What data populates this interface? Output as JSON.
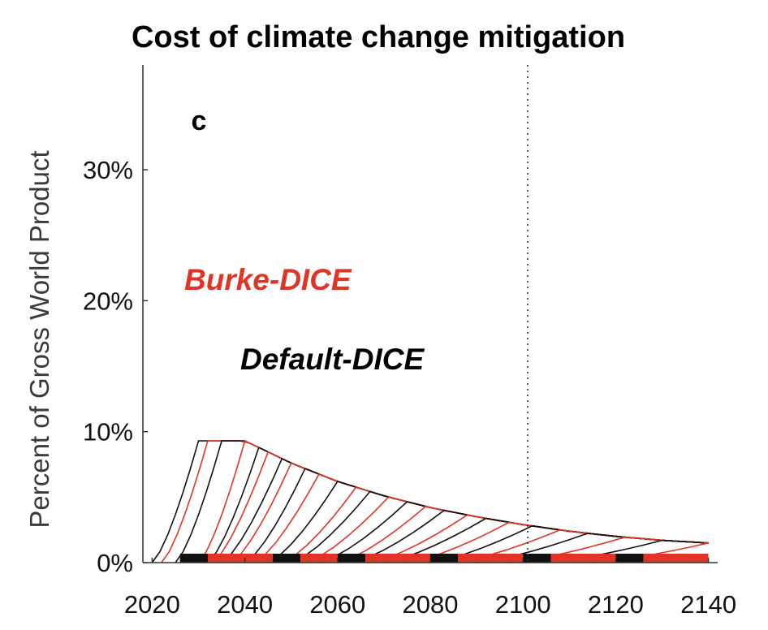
{
  "chart_data": {
    "type": "line",
    "title": "Cost of climate change mitigation",
    "panel_label": "c",
    "xlabel": "",
    "ylabel": "Percent of Gross World Product",
    "xlim": [
      2018,
      2142
    ],
    "ylim": [
      0,
      38
    ],
    "x_ticks": [
      2020,
      2040,
      2060,
      2080,
      2100,
      2120,
      2140
    ],
    "x_tick_labels": [
      "2020",
      "2040",
      "2060",
      "2080",
      "2100",
      "2120",
      "2140"
    ],
    "y_ticks": [
      0,
      10,
      20,
      30
    ],
    "y_tick_labels": [
      "0%",
      "10%",
      "20%",
      "30%"
    ],
    "reference_line": {
      "x": 2101,
      "style": "dotted"
    },
    "colors": {
      "burke": "#e03526",
      "default": "#111111",
      "reference": "#333333"
    },
    "legend": [
      {
        "label": "Burke-DICE",
        "color": "#e03526"
      },
      {
        "label": "Default-DICE",
        "color": "#000000"
      }
    ],
    "envelope": {
      "x": [
        2040,
        2050,
        2060,
        2070,
        2080,
        2090,
        2100,
        2110,
        2120,
        2130,
        2140
      ],
      "y": [
        9.3,
        7.6,
        6.2,
        5.1,
        4.2,
        3.5,
        2.9,
        2.4,
        2.0,
        1.7,
        1.5
      ]
    },
    "series": [
      {
        "name": "Default-DICE",
        "start_year": 2020,
        "peak_year": 2030,
        "color": "#111111"
      },
      {
        "name": "Burke-DICE",
        "start_year": 2022,
        "peak_year": 2032,
        "color": "#e03526"
      },
      {
        "name": "Default-DICE",
        "start_year": 2025,
        "peak_year": 2035,
        "color": "#111111"
      },
      {
        "name": "Burke-DICE",
        "start_year": 2030,
        "peak_year": 2040,
        "color": "#e03526"
      },
      {
        "name": "Default-DICE",
        "start_year": 2032,
        "peak_year": 2043,
        "color": "#111111"
      },
      {
        "name": "Burke-DICE",
        "start_year": 2033,
        "peak_year": 2045,
        "color": "#e03526"
      },
      {
        "name": "Default-DICE",
        "start_year": 2035,
        "peak_year": 2048,
        "color": "#111111"
      },
      {
        "name": "Burke-DICE",
        "start_year": 2037,
        "peak_year": 2050,
        "color": "#e03526"
      },
      {
        "name": "Default-DICE",
        "start_year": 2040,
        "peak_year": 2053,
        "color": "#111111"
      },
      {
        "name": "Burke-DICE",
        "start_year": 2042,
        "peak_year": 2056,
        "color": "#e03526"
      },
      {
        "name": "Default-DICE",
        "start_year": 2045,
        "peak_year": 2060,
        "color": "#111111"
      },
      {
        "name": "Burke-DICE",
        "start_year": 2048,
        "peak_year": 2064,
        "color": "#e03526"
      },
      {
        "name": "Default-DICE",
        "start_year": 2050,
        "peak_year": 2067,
        "color": "#111111"
      },
      {
        "name": "Burke-DICE",
        "start_year": 2053,
        "peak_year": 2071,
        "color": "#e03526"
      },
      {
        "name": "Default-DICE",
        "start_year": 2056,
        "peak_year": 2075,
        "color": "#111111"
      },
      {
        "name": "Burke-DICE",
        "start_year": 2060,
        "peak_year": 2079,
        "color": "#e03526"
      },
      {
        "name": "Default-DICE",
        "start_year": 2063,
        "peak_year": 2083,
        "color": "#111111"
      },
      {
        "name": "Burke-DICE",
        "start_year": 2067,
        "peak_year": 2088,
        "color": "#e03526"
      },
      {
        "name": "Default-DICE",
        "start_year": 2070,
        "peak_year": 2092,
        "color": "#111111"
      },
      {
        "name": "Burke-DICE",
        "start_year": 2075,
        "peak_year": 2097,
        "color": "#e03526"
      },
      {
        "name": "Default-DICE",
        "start_year": 2080,
        "peak_year": 2102,
        "color": "#111111"
      },
      {
        "name": "Burke-DICE",
        "start_year": 2085,
        "peak_year": 2108,
        "color": "#e03526"
      },
      {
        "name": "Default-DICE",
        "start_year": 2090,
        "peak_year": 2114,
        "color": "#111111"
      },
      {
        "name": "Burke-DICE",
        "start_year": 2097,
        "peak_year": 2122,
        "color": "#e03526"
      },
      {
        "name": "Default-DICE",
        "start_year": 2105,
        "peak_year": 2130,
        "color": "#111111"
      },
      {
        "name": "Burke-DICE",
        "start_year": 2115,
        "peak_year": 2140,
        "color": "#e03526"
      }
    ],
    "baseline_blocks": [
      {
        "start": 2026,
        "end": 2032,
        "color": "#111111"
      },
      {
        "start": 2032,
        "end": 2046,
        "color": "#e03526"
      },
      {
        "start": 2046,
        "end": 2052,
        "color": "#111111"
      },
      {
        "start": 2052,
        "end": 2060,
        "color": "#e03526"
      },
      {
        "start": 2060,
        "end": 2066,
        "color": "#111111"
      },
      {
        "start": 2066,
        "end": 2080,
        "color": "#e03526"
      },
      {
        "start": 2080,
        "end": 2086,
        "color": "#111111"
      },
      {
        "start": 2086,
        "end": 2100,
        "color": "#e03526"
      },
      {
        "start": 2100,
        "end": 2106,
        "color": "#111111"
      },
      {
        "start": 2106,
        "end": 2120,
        "color": "#e03526"
      },
      {
        "start": 2120,
        "end": 2126,
        "color": "#111111"
      },
      {
        "start": 2126,
        "end": 2140,
        "color": "#e03526"
      }
    ]
  }
}
